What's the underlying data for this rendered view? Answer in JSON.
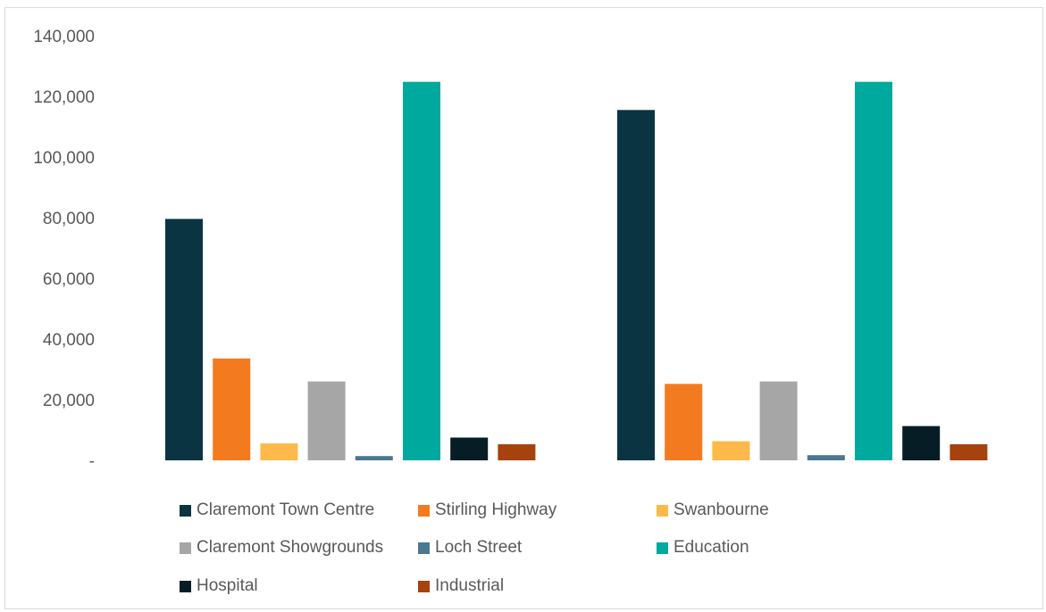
{
  "chart_data": {
    "type": "bar",
    "title": "",
    "xlabel": "",
    "ylabel": "",
    "categories": [
      "",
      ""
    ],
    "ylim": [
      0,
      140000
    ],
    "y_ticks": [
      "-",
      "20,000",
      "40,000",
      "60,000",
      "80,000",
      "100,000",
      "120,000",
      "140,000"
    ],
    "grid": false,
    "legend_position": "bottom",
    "series": [
      {
        "name": "Claremont Town Centre",
        "color": "#0b3442",
        "values": [
          79600,
          115500
        ]
      },
      {
        "name": "Stirling Highway",
        "color": "#f47a20",
        "values": [
          33600,
          25200
        ]
      },
      {
        "name": "Swanbourne",
        "color": "#fdb94a",
        "values": [
          5600,
          6300
        ]
      },
      {
        "name": "Claremont Showgrounds",
        "color": "#a6a6a6",
        "values": [
          26000,
          26000
        ]
      },
      {
        "name": "Loch Street",
        "color": "#4a7891",
        "values": [
          1400,
          1700
        ]
      },
      {
        "name": "Education",
        "color": "#00a99d",
        "values": [
          124800,
          124800
        ]
      },
      {
        "name": "Hospital",
        "color": "#061d26",
        "values": [
          7500,
          11300
        ]
      },
      {
        "name": "Industrial",
        "color": "#a5420d",
        "values": [
          5300,
          5300
        ]
      }
    ]
  }
}
